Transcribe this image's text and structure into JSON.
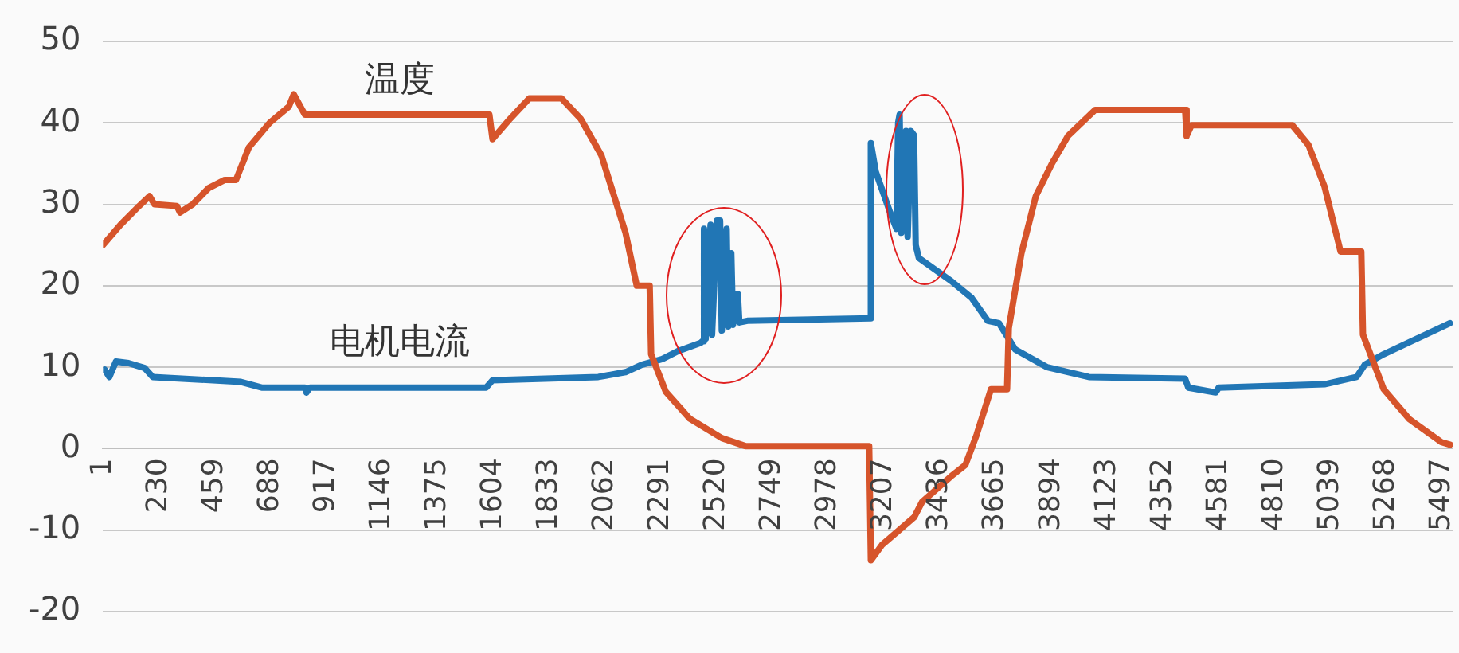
{
  "chart_data": {
    "type": "line",
    "xlim": [
      1,
      5541
    ],
    "xticks": [
      1,
      230,
      459,
      688,
      917,
      1146,
      1375,
      1604,
      1833,
      2062,
      2291,
      2520,
      2749,
      2978,
      3207,
      3436,
      3665,
      3894,
      4123,
      4352,
      4581,
      4810,
      5039,
      5268,
      5497
    ],
    "ylim": [
      -20,
      50
    ],
    "yticks": [
      -20,
      -10,
      0,
      10,
      20,
      30,
      40,
      50
    ],
    "grid": "y",
    "legend": false,
    "marker": "none",
    "line_style": "solid",
    "series": [
      {
        "name": "温度",
        "color": "#d6542b",
        "x": [
          1,
          73,
          139,
          192,
          212,
          304,
          317,
          369,
          435,
          501,
          547,
          600,
          685,
          764,
          784,
          830,
          1587,
          1600,
          1672,
          1751,
          1883,
          1962,
          2047,
          2146,
          2192,
          2245,
          2251,
          2311,
          2409,
          2541,
          2640,
          3146,
          3153,
          3199,
          3331,
          3364,
          3482,
          3541,
          3587,
          3646,
          3712,
          3719,
          3771,
          3830,
          3896,
          3962,
          4074,
          4443,
          4449,
          4469,
          4883,
          4949,
          5015,
          5081,
          5166,
          5173,
          5258,
          5364,
          5495,
          5530
        ],
        "values": [
          25,
          27.5,
          29.5,
          31,
          30,
          29.8,
          29,
          30,
          32,
          33,
          33,
          37,
          40,
          42,
          43.5,
          41,
          41,
          38,
          40.5,
          43,
          43,
          40.5,
          36,
          26.5,
          20,
          20,
          11.6,
          7,
          3.7,
          1.3,
          0.3,
          0.3,
          -13.7,
          -11.8,
          -8.4,
          -6.5,
          -3.4,
          -2,
          1.7,
          7.3,
          7.3,
          14.8,
          24,
          31,
          35,
          38.4,
          41.6,
          41.6,
          38.4,
          39.7,
          39.7,
          37.3,
          32.2,
          24.2,
          24.2,
          14,
          7.3,
          3.6,
          0.8,
          0.5
        ]
      },
      {
        "name": "电机电流",
        "color": "#2176b5",
        "x": [
          8,
          27,
          54,
          106,
          172,
          205,
          567,
          652,
          830,
          836,
          850,
          1574,
          1600,
          2034,
          2146,
          2212,
          2297,
          2363,
          2455,
          2462,
          2468,
          2475,
          2495,
          2501,
          2521,
          2534,
          2541,
          2561,
          2567,
          2580,
          2587,
          2607,
          2613,
          2646,
          3150,
          3153,
          3173,
          3232,
          3258,
          3265,
          3271,
          3278,
          3297,
          3304,
          3317,
          3330,
          3337,
          3350,
          3482,
          3567,
          3633,
          3679,
          3745,
          3877,
          4048,
          4443,
          4456,
          4568,
          4581,
          5015,
          5147,
          5180,
          5258,
          5530
        ],
        "values": [
          9.7,
          8.8,
          10.7,
          10.5,
          9.9,
          8.8,
          8.2,
          7.5,
          7.5,
          6.9,
          7.5,
          7.5,
          8.4,
          8.8,
          9.4,
          10.3,
          11,
          12,
          13,
          13.2,
          27,
          13.5,
          27.5,
          14,
          28,
          28,
          14.5,
          27,
          15,
          24,
          15.2,
          19,
          15.5,
          15.7,
          16,
          37.5,
          34,
          29,
          27,
          40,
          41,
          26.5,
          39,
          26,
          39,
          38.5,
          25,
          23.4,
          20.6,
          18.5,
          15.7,
          15.4,
          12.2,
          10,
          8.8,
          8.6,
          7.5,
          6.9,
          7.5,
          7.9,
          8.8,
          10.3,
          11.6,
          15.4
        ]
      }
    ]
  }
}
